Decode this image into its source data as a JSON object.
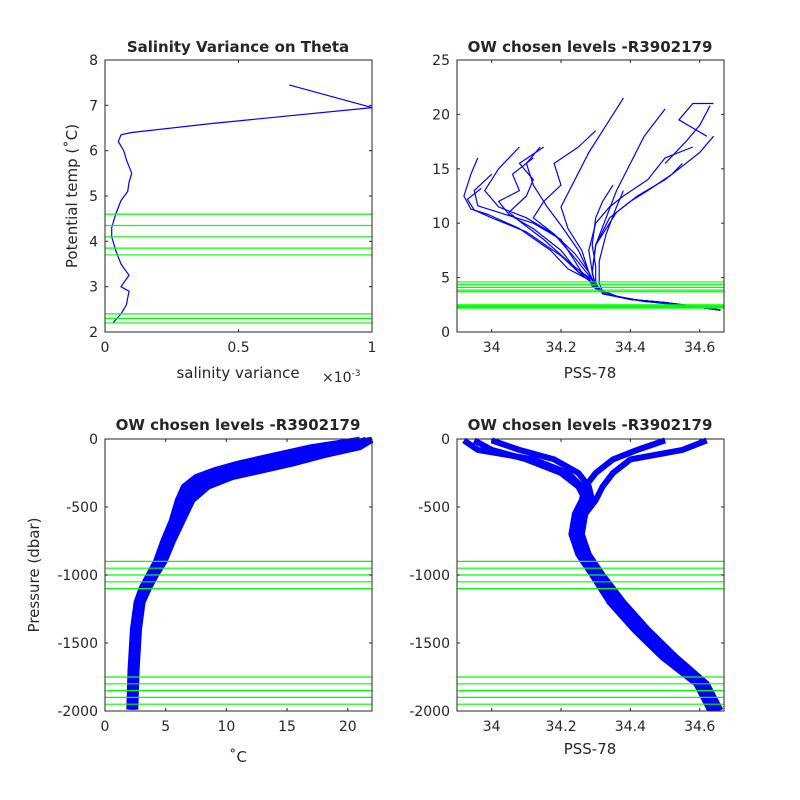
{
  "colors": {
    "profile": "#0000ff",
    "level": "#00ff00",
    "axis": "#262626"
  },
  "chart_data": [
    {
      "id": "p1",
      "type": "line",
      "title": "Salinity Variance on Theta",
      "xlabel": "salinity variance",
      "xexp": "×10",
      "xexp_power": "-3",
      "ylabel": "Potential temp (˚C)",
      "xlim": [
        0,
        1
      ],
      "ylim": [
        2,
        8
      ],
      "xticks": [
        0,
        0.5,
        1
      ],
      "xtick_labels": [
        "0",
        "0.5",
        "1"
      ],
      "yticks": [
        2,
        3,
        4,
        5,
        6,
        7,
        8
      ],
      "ytick_labels": [
        "2",
        "3",
        "4",
        "5",
        "6",
        "7",
        "8"
      ],
      "series": [
        {
          "x": [
            0.03,
            0.06,
            0.08,
            0.09,
            0.06,
            0.09,
            0.06,
            0.04,
            0.025,
            0.025,
            0.04,
            0.06,
            0.085,
            0.09,
            0.1,
            0.08,
            0.07,
            0.06,
            0.05,
            0.06,
            0.1,
            0.4,
            1.0,
            0.69
          ],
          "y": [
            2.2,
            2.4,
            2.6,
            2.9,
            3.0,
            3.25,
            3.5,
            3.8,
            4.1,
            4.3,
            4.6,
            4.9,
            5.1,
            5.3,
            5.5,
            5.8,
            6.0,
            6.1,
            6.2,
            6.35,
            6.4,
            6.6,
            6.95,
            7.45
          ]
        }
      ],
      "hlines": [
        2.2,
        2.3,
        2.4,
        3.7,
        3.85,
        4.1,
        4.35,
        4.6
      ]
    },
    {
      "id": "p2",
      "type": "line",
      "title": "OW chosen levels -R3902179",
      "xlabel": "PSS-78",
      "ylabel": "",
      "xlim": [
        33.9,
        34.67
      ],
      "ylim": [
        0,
        25
      ],
      "xticks": [
        34,
        34.2,
        34.4,
        34.6
      ],
      "xtick_labels": [
        "34",
        "34.2",
        "34.4",
        "34.6"
      ],
      "yticks": [
        0,
        5,
        10,
        15,
        20,
        25
      ],
      "ytick_labels": [
        "0",
        "5",
        "10",
        "15",
        "20",
        "25"
      ],
      "series": [
        {
          "x": [
            34.66,
            34.58,
            34.5,
            34.4,
            34.33,
            34.3,
            34.28,
            34.25,
            34.22,
            34.17,
            34.08,
            33.99,
            33.94,
            33.92,
            33.94,
            33.96
          ],
          "y": [
            2.0,
            2.4,
            2.7,
            3.0,
            3.5,
            4.0,
            4.8,
            5.3,
            5.8,
            7.5,
            9.5,
            10.8,
            11.3,
            12.5,
            14.5,
            16.0
          ]
        },
        {
          "x": [
            34.66,
            34.6,
            34.5,
            34.4,
            34.33,
            34.3,
            34.29,
            34.26,
            34.24,
            34.2,
            34.12,
            34.02,
            33.96,
            33.95,
            34.0
          ],
          "y": [
            2.0,
            2.3,
            2.6,
            3.0,
            3.5,
            4.0,
            4.8,
            5.5,
            6.5,
            8.5,
            10.0,
            11.0,
            11.6,
            13.0,
            14.5
          ]
        },
        {
          "x": [
            34.65,
            34.55,
            34.45,
            34.37,
            34.32,
            34.29,
            34.28,
            34.25,
            34.2,
            34.1,
            34.0,
            33.95,
            33.93,
            33.97
          ],
          "y": [
            2.1,
            2.5,
            2.8,
            3.2,
            3.6,
            4.2,
            5.0,
            5.5,
            7.0,
            9.2,
            10.5,
            11.2,
            12.2,
            13.2
          ]
        },
        {
          "x": [
            34.66,
            34.58,
            34.5,
            34.4,
            34.32,
            34.3,
            34.3,
            34.29,
            34.3,
            34.32,
            34.35
          ],
          "y": [
            2.0,
            2.4,
            2.7,
            3.0,
            3.5,
            4.5,
            6.0,
            8.0,
            10.5,
            12.0,
            13.5
          ]
        },
        {
          "x": [
            34.64,
            34.55,
            34.44,
            34.36,
            34.32,
            34.31,
            34.31,
            34.33,
            34.36,
            34.38
          ],
          "y": [
            2.1,
            2.5,
            2.8,
            3.3,
            3.8,
            4.5,
            6.5,
            9.0,
            11.5,
            13.0
          ]
        },
        {
          "x": [
            34.66,
            34.5,
            34.4,
            34.33,
            34.3,
            34.27,
            34.22,
            34.15,
            34.08,
            34.05,
            34.1,
            34.12,
            34.08,
            34.15
          ],
          "y": [
            2.0,
            2.7,
            3.0,
            3.5,
            4.2,
            5.2,
            6.5,
            8.5,
            10.2,
            11.0,
            12.5,
            14.0,
            15.5,
            17.0
          ]
        },
        {
          "x": [
            34.66,
            34.5,
            34.4,
            34.33,
            34.3,
            34.28,
            34.24,
            34.18,
            34.12,
            34.15,
            34.2,
            34.18,
            34.25,
            34.3
          ],
          "y": [
            2.0,
            2.7,
            3.0,
            3.5,
            4.3,
            5.2,
            6.8,
            9.0,
            10.5,
            12.0,
            13.5,
            15.5,
            17.0,
            18.5
          ]
        },
        {
          "x": [
            34.66,
            34.5,
            34.4,
            34.32,
            34.29,
            34.25,
            34.2,
            34.12,
            34.05,
            34.02,
            34.08,
            34.06,
            34.12
          ],
          "y": [
            2.0,
            2.7,
            3.0,
            3.6,
            4.5,
            5.5,
            7.5,
            9.5,
            10.8,
            12.0,
            13.0,
            14.5,
            16.0
          ]
        },
        {
          "x": [
            34.66,
            34.5,
            34.4,
            34.33,
            34.3,
            34.29,
            34.28,
            34.3,
            34.34,
            34.38,
            34.45,
            34.5,
            34.58
          ],
          "y": [
            2.0,
            2.7,
            3.0,
            3.5,
            4.2,
            5.5,
            7.5,
            10.0,
            11.5,
            12.5,
            14.0,
            16.0,
            17.0
          ]
        },
        {
          "x": [
            34.66,
            34.5,
            34.4,
            34.33,
            34.3,
            34.29,
            34.3,
            34.34,
            34.4,
            34.45,
            34.52,
            34.55
          ],
          "y": [
            2.0,
            2.7,
            3.0,
            3.5,
            4.2,
            5.5,
            8.0,
            10.5,
            12.0,
            13.0,
            14.5,
            15.5
          ]
        },
        {
          "x": [
            34.66,
            34.5,
            34.4,
            34.33,
            34.3,
            34.28,
            34.26,
            34.22,
            34.2,
            34.24,
            34.28,
            34.33,
            34.38
          ],
          "y": [
            2.0,
            2.7,
            3.0,
            3.5,
            4.2,
            5.5,
            7.5,
            9.5,
            11.5,
            14.0,
            16.5,
            19.0,
            21.5
          ]
        },
        {
          "x": [
            34.66,
            34.5,
            34.4,
            34.33,
            34.3,
            34.29,
            34.3,
            34.33,
            34.36,
            34.4,
            34.44,
            34.5
          ],
          "y": [
            2.0,
            2.7,
            3.0,
            3.5,
            4.2,
            5.5,
            8.0,
            10.5,
            13.0,
            15.5,
            18.0,
            20.5
          ]
        },
        {
          "x": [
            34.66,
            34.5,
            34.4,
            34.33,
            34.3,
            34.28,
            34.24,
            34.18,
            34.1,
            34.02,
            33.98,
            34.02,
            34.08
          ],
          "y": [
            2.0,
            2.7,
            3.0,
            3.5,
            4.2,
            5.5,
            7.2,
            9.0,
            10.5,
            11.5,
            13.0,
            15.0,
            17.0
          ]
        },
        {
          "x": [
            34.66,
            34.5,
            34.4,
            34.33,
            34.3,
            34.29,
            34.3,
            34.36,
            34.42,
            34.5,
            34.6,
            34.64
          ],
          "y": [
            2.0,
            2.7,
            3.0,
            3.5,
            4.2,
            5.5,
            8.0,
            11.0,
            12.5,
            14.0,
            16.5,
            18.0
          ]
        },
        {
          "x": [
            34.66,
            34.5,
            34.4,
            34.33,
            34.3,
            34.28,
            34.25,
            34.2,
            34.16,
            34.12,
            34.1,
            34.14
          ],
          "y": [
            2.0,
            2.7,
            3.0,
            3.5,
            4.2,
            5.5,
            7.5,
            9.8,
            11.5,
            13.5,
            15.5,
            17.0
          ]
        },
        {
          "x": [
            34.62,
            34.54,
            34.58,
            34.64
          ],
          "y": [
            18.0,
            19.5,
            21.0,
            21.0
          ]
        },
        {
          "x": [
            34.5,
            34.56,
            34.6,
            34.63
          ],
          "y": [
            15.5,
            17.5,
            19.0,
            20.8
          ]
        }
      ],
      "hlines": [
        2.2,
        2.3,
        2.4,
        2.5,
        3.7,
        3.85,
        4.1,
        4.35,
        4.6
      ]
    },
    {
      "id": "p3",
      "type": "line",
      "title": "OW chosen levels -R3902179",
      "xlabel": "˚C",
      "ylabel": "Pressure (dbar)",
      "xlim": [
        0,
        22
      ],
      "ylim": [
        -2000,
        0
      ],
      "xticks": [
        0,
        5,
        10,
        15,
        20
      ],
      "xtick_labels": [
        "0",
        "5",
        "10",
        "15",
        "20"
      ],
      "yticks": [
        -2000,
        -1500,
        -1000,
        -500,
        0
      ],
      "ytick_labels": [
        "-2000",
        "-1500",
        "-1000",
        "-500",
        "0"
      ],
      "series": [
        {
          "x": [
            2.0,
            2.1,
            2.3,
            2.6,
            3.0,
            3.6,
            4.2,
            4.8,
            5.5,
            6.0,
            6.5,
            7.5,
            9.0,
            11.0,
            14.0,
            17.0,
            21.0
          ],
          "y": [
            -1990,
            -1700,
            -1400,
            -1200,
            -1100,
            -1000,
            -900,
            -750,
            -600,
            -450,
            -350,
            -280,
            -230,
            -180,
            -120,
            -60,
            -5
          ]
        },
        {
          "x": [
            2.1,
            2.2,
            2.4,
            2.8,
            3.2,
            3.8,
            4.4,
            5.0,
            5.8,
            6.3,
            7.0,
            8.5,
            10.5,
            12.5,
            15.0,
            18.5,
            22.0
          ],
          "y": [
            -1990,
            -1700,
            -1400,
            -1200,
            -1100,
            -1000,
            -900,
            -750,
            -600,
            -450,
            -350,
            -280,
            -230,
            -180,
            -120,
            -60,
            -5
          ]
        },
        {
          "x": [
            2.3,
            2.4,
            2.6,
            3.0,
            3.5,
            4.0,
            4.7,
            5.3,
            6.1,
            6.8,
            7.8,
            9.5,
            12.0,
            14.0,
            16.5,
            20.0,
            22.0
          ],
          "y": [
            -1990,
            -1700,
            -1400,
            -1200,
            -1100,
            -1000,
            -900,
            -750,
            -600,
            -450,
            -350,
            -280,
            -230,
            -180,
            -120,
            -60,
            -5
          ]
        },
        {
          "x": [
            2.5,
            2.6,
            2.8,
            3.1,
            3.6,
            4.2,
            4.9,
            5.6,
            6.4,
            7.2,
            8.5,
            10.5,
            13.0,
            15.5,
            18.0,
            21.0,
            22.0
          ],
          "y": [
            -1990,
            -1700,
            -1400,
            -1200,
            -1100,
            -1000,
            -900,
            -750,
            -600,
            -450,
            -350,
            -280,
            -230,
            -180,
            -120,
            -60,
            -5
          ]
        },
        {
          "x": [
            2.2,
            2.3,
            2.5,
            2.9,
            3.3,
            3.9,
            4.5,
            5.2,
            6.0,
            6.6,
            7.4,
            9.0,
            11.5,
            13.5,
            16.0,
            19.5,
            21.5
          ],
          "y": [
            -1990,
            -1700,
            -1400,
            -1200,
            -1100,
            -1000,
            -900,
            -750,
            -600,
            -450,
            -350,
            -280,
            -230,
            -180,
            -120,
            -60,
            -5
          ]
        }
      ],
      "hlines": [
        -900,
        -950,
        -1000,
        -1050,
        -1100,
        -1750,
        -1800,
        -1850,
        -1900,
        -1950
      ]
    },
    {
      "id": "p4",
      "type": "line",
      "title": "OW chosen levels -R3902179",
      "xlabel": "PSS-78",
      "ylabel": "",
      "xlim": [
        33.9,
        34.67
      ],
      "ylim": [
        -2000,
        0
      ],
      "xticks": [
        34,
        34.2,
        34.4,
        34.6
      ],
      "xtick_labels": [
        "34",
        "34.2",
        "34.4",
        "34.6"
      ],
      "yticks": [
        -2000,
        -1500,
        -1000,
        -500,
        0
      ],
      "ytick_labels": [
        "-2000",
        "-1500",
        "-1000",
        "-500",
        "0"
      ],
      "series": [
        {
          "x": [
            34.64,
            34.6,
            34.5,
            34.42,
            34.35,
            34.3,
            34.26,
            34.24,
            34.25,
            34.27,
            34.25,
            34.2,
            34.1,
            34.0,
            33.95
          ],
          "y": [
            -1995,
            -1800,
            -1600,
            -1400,
            -1200,
            -1000,
            -850,
            -700,
            -550,
            -450,
            -350,
            -250,
            -150,
            -80,
            -10
          ]
        },
        {
          "x": [
            34.65,
            34.61,
            34.52,
            34.44,
            34.37,
            34.31,
            34.27,
            34.25,
            34.26,
            34.29,
            34.28,
            34.25,
            34.18,
            34.08,
            34.0
          ],
          "y": [
            -1995,
            -1800,
            -1600,
            -1400,
            -1200,
            -1000,
            -850,
            -700,
            -550,
            -450,
            -350,
            -250,
            -150,
            -80,
            -10
          ]
        },
        {
          "x": [
            34.63,
            34.59,
            34.49,
            34.41,
            34.34,
            34.29,
            34.25,
            34.23,
            34.24,
            34.26,
            34.27,
            34.3,
            34.35,
            34.42,
            34.5
          ],
          "y": [
            -1995,
            -1800,
            -1600,
            -1400,
            -1200,
            -1000,
            -850,
            -700,
            -550,
            -450,
            -350,
            -250,
            -150,
            -80,
            -10
          ]
        },
        {
          "x": [
            34.66,
            34.62,
            34.53,
            34.45,
            34.38,
            34.32,
            34.28,
            34.26,
            34.27,
            34.3,
            34.32,
            34.35,
            34.4,
            34.55,
            34.62
          ],
          "y": [
            -1995,
            -1800,
            -1600,
            -1400,
            -1200,
            -1000,
            -850,
            -700,
            -550,
            -450,
            -350,
            -250,
            -150,
            -80,
            -10
          ]
        },
        {
          "x": [
            34.64,
            34.6,
            34.51,
            34.43,
            34.36,
            34.3,
            34.26,
            34.24,
            34.25,
            34.28,
            34.26,
            34.22,
            34.12,
            33.96,
            33.92
          ],
          "y": [
            -1995,
            -1800,
            -1600,
            -1400,
            -1200,
            -1000,
            -850,
            -700,
            -550,
            -450,
            -350,
            -250,
            -150,
            -80,
            -10
          ]
        }
      ],
      "hlines": [
        -900,
        -950,
        -1000,
        -1050,
        -1100,
        -1750,
        -1800,
        -1850,
        -1900,
        -1950
      ]
    }
  ]
}
